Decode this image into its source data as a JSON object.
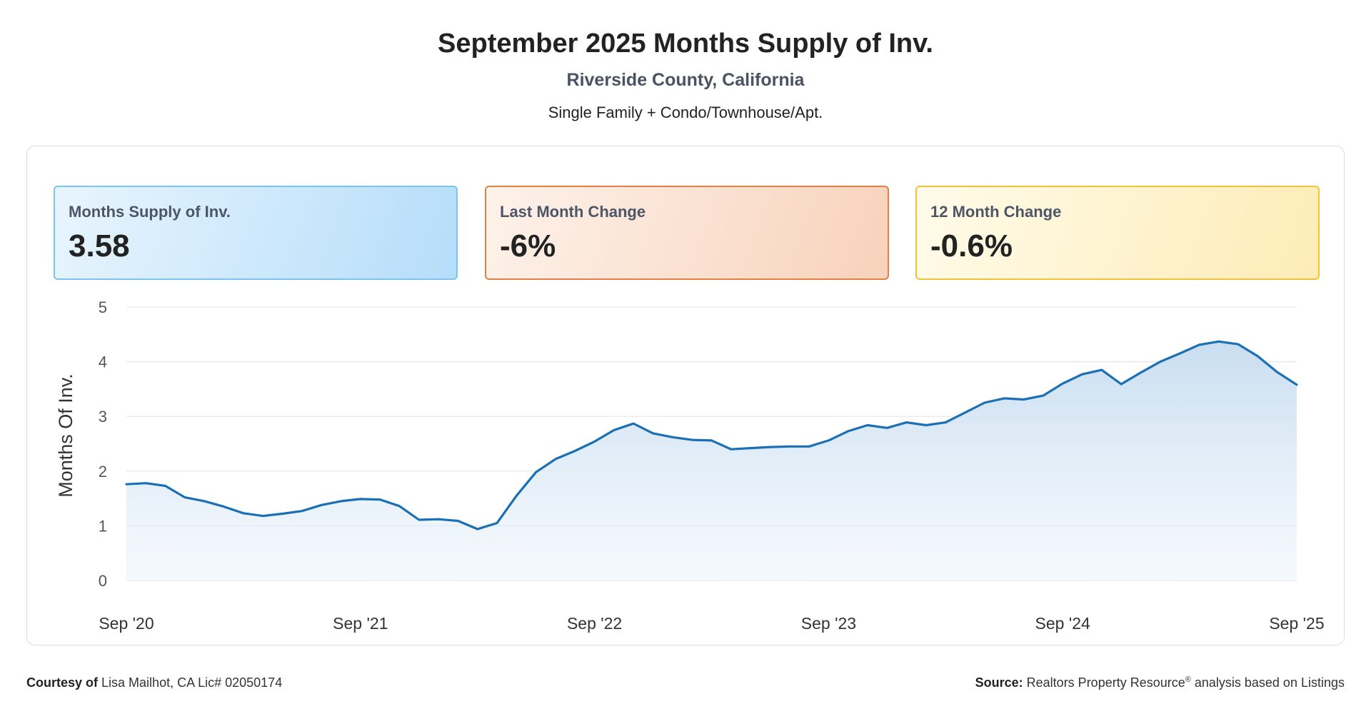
{
  "header": {
    "title": "September 2025 Months Supply of Inv.",
    "subtitle": "Riverside County, California",
    "property_types": "Single Family + Condo/Townhouse/Apt."
  },
  "cards": [
    {
      "label": "Months Supply of Inv.",
      "value": "3.58",
      "color": "#7cc3ee"
    },
    {
      "label": "Last Month Change",
      "value": "-6%",
      "color": "#e08246"
    },
    {
      "label": "12 Month Change",
      "value": "-0.6%",
      "color": "#f0c43a"
    }
  ],
  "chart_data": {
    "type": "area",
    "ylabel": "Months Of Inv.",
    "ylim": [
      0,
      5
    ],
    "yticks": [
      0,
      1,
      2,
      3,
      4,
      5
    ],
    "xticks": [
      "Sep '20",
      "Sep '21",
      "Sep '22",
      "Sep '23",
      "Sep '24",
      "Sep '25"
    ],
    "grid": true,
    "line_color": "#1a6fb5",
    "fill_color": "#cfe2f3",
    "series": [
      {
        "x": [
          "Sep '20",
          "Oct '20",
          "Nov '20",
          "Dec '20",
          "Jan '21",
          "Feb '21",
          "Mar '21",
          "Apr '21",
          "May '21",
          "Jun '21",
          "Jul '21",
          "Aug '21",
          "Sep '21",
          "Oct '21",
          "Nov '21",
          "Dec '21",
          "Jan '22",
          "Feb '22",
          "Mar '22",
          "Apr '22",
          "May '22",
          "Jun '22",
          "Jul '22",
          "Aug '22",
          "Sep '22",
          "Oct '22",
          "Nov '22",
          "Dec '22",
          "Jan '23",
          "Feb '23",
          "Mar '23",
          "Apr '23",
          "May '23",
          "Jun '23",
          "Jul '23",
          "Aug '23",
          "Sep '23",
          "Oct '23",
          "Nov '23",
          "Dec '23",
          "Jan '24",
          "Feb '24",
          "Mar '24",
          "Apr '24",
          "May '24",
          "Jun '24",
          "Jul '24",
          "Aug '24",
          "Sep '24",
          "Oct '24",
          "Nov '24",
          "Dec '24",
          "Jan '25",
          "Feb '25",
          "Mar '25",
          "Apr '25",
          "May '25",
          "Jun '25",
          "Jul '25",
          "Aug '25",
          "Sep '25"
        ],
        "values": [
          1.76,
          1.78,
          1.73,
          1.52,
          1.45,
          1.35,
          1.23,
          1.18,
          1.22,
          1.27,
          1.38,
          1.45,
          1.49,
          1.48,
          1.36,
          1.11,
          1.12,
          1.09,
          0.94,
          1.05,
          1.55,
          1.98,
          2.22,
          2.37,
          2.54,
          2.75,
          2.87,
          2.69,
          2.62,
          2.57,
          2.56,
          2.4,
          2.42,
          2.44,
          2.45,
          2.45,
          2.56,
          2.73,
          2.84,
          2.79,
          2.89,
          2.84,
          2.89,
          3.07,
          3.25,
          3.33,
          3.31,
          3.38,
          3.6,
          3.77,
          3.85,
          3.59,
          3.8,
          4.0,
          4.15,
          4.31,
          4.37,
          4.32,
          4.1,
          3.81,
          3.58
        ]
      }
    ]
  },
  "footer": {
    "courtesy_label": "Courtesy of",
    "courtesy_text": "Lisa Mailhot, CA Lic# 02050174",
    "source_label": "Source:",
    "source_text_a": "Realtors Property Resource",
    "source_sup": "®",
    "source_text_b": " analysis based on Listings"
  }
}
